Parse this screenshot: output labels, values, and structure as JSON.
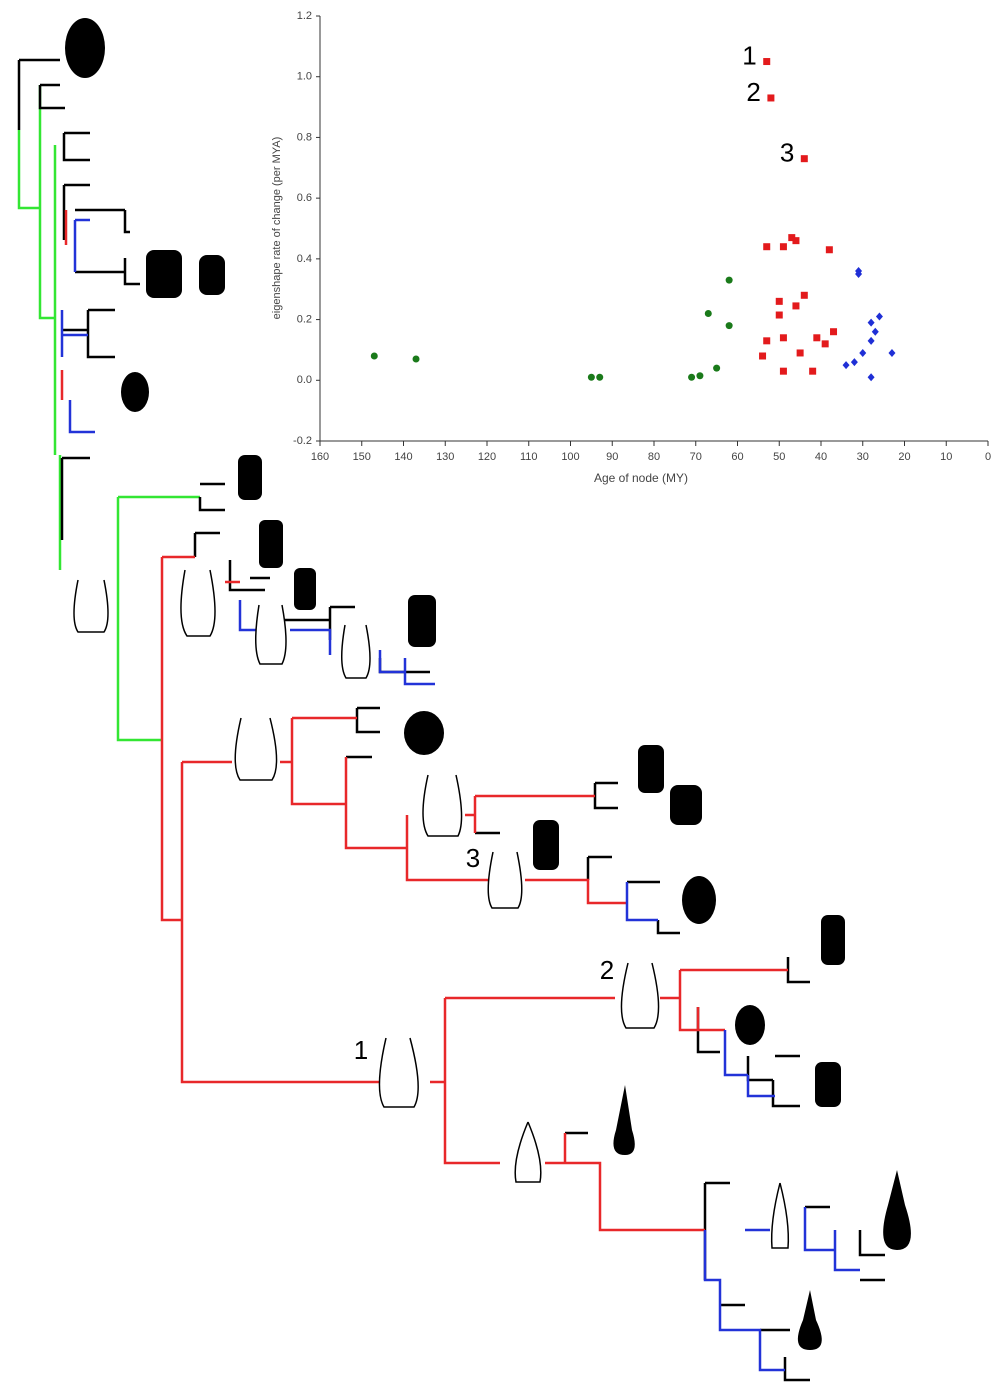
{
  "chart_data": {
    "type": "scatter",
    "xlabel": "Age of node (MY)",
    "ylabel": "eigenshape rate of change (per MYA)",
    "xlim": [
      160,
      0
    ],
    "xticks": [
      160,
      150,
      140,
      130,
      120,
      110,
      100,
      90,
      80,
      70,
      60,
      50,
      40,
      30,
      20,
      10,
      0
    ],
    "ylim": [
      -0.2,
      1.2
    ],
    "yticks": [
      -0.2,
      {
        "value": 0,
        "label": "0.0"
      },
      0.2,
      0.4,
      0.6,
      0.8,
      {
        "value": 1,
        "label": "1.0"
      },
      1.2
    ],
    "grid": false,
    "annotations": [
      "1",
      "2",
      "3"
    ],
    "series": [
      {
        "color": "#1a7a1a",
        "marker": "circle",
        "x": [
          147,
          137,
          95,
          93,
          71,
          69,
          65,
          67,
          62,
          62
        ],
        "values": [
          0.08,
          0.07,
          0.01,
          0.01,
          0.01,
          0.015,
          0.04,
          0.22,
          0.33,
          0.18
        ]
      },
      {
        "color": "#e31a1c",
        "marker": "square",
        "x": [
          53,
          52,
          44,
          53,
          49,
          47,
          46,
          38,
          50,
          50,
          46,
          44,
          49,
          53,
          54,
          45,
          49,
          41,
          39,
          37,
          42
        ],
        "values": [
          1.05,
          0.93,
          0.73,
          0.44,
          0.44,
          0.47,
          0.46,
          0.43,
          0.26,
          0.215,
          0.245,
          0.28,
          0.14,
          0.13,
          0.08,
          0.09,
          0.03,
          0.14,
          0.12,
          0.16,
          0.03
        ]
      },
      {
        "color": "#1f2fd6",
        "marker": "diamond",
        "x": [
          31,
          31,
          34,
          32,
          30,
          28,
          27,
          28,
          26,
          23,
          28
        ],
        "values": [
          0.36,
          0.35,
          0.05,
          0.06,
          0.09,
          0.13,
          0.16,
          0.19,
          0.21,
          0.09,
          0.01
        ]
      }
    ]
  },
  "tree_labels": [
    "1",
    "2",
    "3"
  ]
}
